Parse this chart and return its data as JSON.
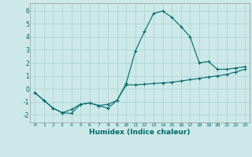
{
  "xlabel": "Humidex (Indice chaleur)",
  "bg_color": "#cce8e8",
  "grid_color": "#afd4d4",
  "line_color": "#006868",
  "xlim": [
    -0.5,
    23.5
  ],
  "ylim": [
    -2.6,
    6.6
  ],
  "xticks": [
    0,
    1,
    2,
    3,
    4,
    5,
    6,
    7,
    8,
    9,
    10,
    11,
    12,
    13,
    14,
    15,
    16,
    17,
    18,
    19,
    20,
    21,
    22,
    23
  ],
  "yticks": [
    -2,
    -1,
    0,
    1,
    2,
    3,
    4,
    5,
    6
  ],
  "curve1_x": [
    0,
    1,
    2,
    3,
    4,
    5,
    6,
    7,
    8,
    9,
    10,
    11,
    12,
    13,
    14,
    15,
    16,
    17,
    18,
    19,
    20,
    21,
    22,
    23
  ],
  "curve1_y": [
    -0.3,
    -0.9,
    -1.5,
    -1.85,
    -1.9,
    -1.2,
    -1.1,
    -1.3,
    -1.2,
    -0.9,
    0.4,
    2.9,
    4.4,
    5.8,
    6.0,
    5.5,
    4.8,
    4.0,
    2.0,
    2.1,
    1.5,
    1.5,
    1.6,
    1.7
  ],
  "curve2_x": [
    0,
    1,
    2,
    3,
    4,
    5,
    6,
    7,
    8,
    9,
    10,
    11,
    12,
    13,
    14,
    15,
    16,
    17,
    18,
    19,
    20,
    21,
    22,
    23
  ],
  "curve2_y": [
    -0.3,
    -0.9,
    -1.5,
    -1.85,
    -1.6,
    -1.2,
    -1.1,
    -1.3,
    -1.5,
    -0.9,
    0.3,
    0.3,
    0.35,
    0.4,
    0.45,
    0.5,
    0.6,
    0.7,
    0.8,
    0.9,
    1.0,
    1.1,
    1.3,
    1.5
  ]
}
